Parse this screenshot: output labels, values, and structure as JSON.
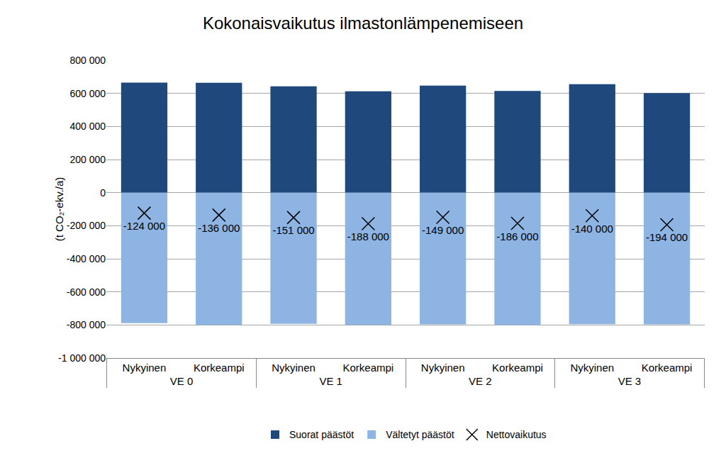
{
  "chart_data": {
    "type": "bar",
    "title": "Kokonaisvaikutus ilmastonlämpenemiseen",
    "y_label": "(t CO₂-ekv./a)",
    "categories": [
      [
        "VE 0",
        "Nykyinen"
      ],
      [
        "VE 0",
        "Korkeampi"
      ],
      [
        "VE 1",
        "Nykyinen"
      ],
      [
        "VE 1",
        "Korkeampi"
      ],
      [
        "VE 2",
        "Nykyinen"
      ],
      [
        "VE 2",
        "Korkeampi"
      ],
      [
        "VE 3",
        "Nykyinen"
      ],
      [
        "VE 3",
        "Korkeampi"
      ]
    ],
    "stacked": true,
    "grid": true,
    "legend": "bottom",
    "data_labels": true,
    "ylim": [
      -1000000,
      800000
    ],
    "yticks": [
      {
        "value": -1000000,
        "label": "-1 000 000"
      },
      {
        "value": -800000,
        "label": "-800 000"
      },
      {
        "value": -600000,
        "label": "-600 000"
      },
      {
        "value": -400000,
        "label": "-400 000"
      },
      {
        "value": -200000,
        "label": "-200 000"
      },
      0,
      {
        "value": 200000,
        "label": "200 000"
      },
      {
        "value": 400000,
        "label": "400 000"
      },
      {
        "value": 600000,
        "label": "600 000"
      },
      {
        "value": 800000,
        "label": "800 000"
      }
    ],
    "series": [
      {
        "name": "Suorat päästöt",
        "type": "bar",
        "color": "#1f497d",
        "values": [
          665000,
          664000,
          642000,
          612000,
          647000,
          615000,
          655000,
          602000
        ]
      },
      {
        "name": "Vältetyt päästöt",
        "type": "bar",
        "color": "#8db4e2",
        "values": [
          -789000,
          -800000,
          -793000,
          -800000,
          -796000,
          -801000,
          -795000,
          -796000
        ]
      },
      {
        "name": "Nettovaikutus",
        "type": "scatter",
        "marker": "x",
        "color": "#000000",
        "values": [
          -124000,
          -136000,
          -151000,
          -188000,
          -149000,
          -186000,
          -140000,
          -194000
        ],
        "value_labels": [
          "-124 000",
          "-136 000",
          "-151 000",
          "-188 000",
          "-149 000",
          "-186 000",
          "-140 000",
          "-194 000"
        ]
      }
    ]
  }
}
